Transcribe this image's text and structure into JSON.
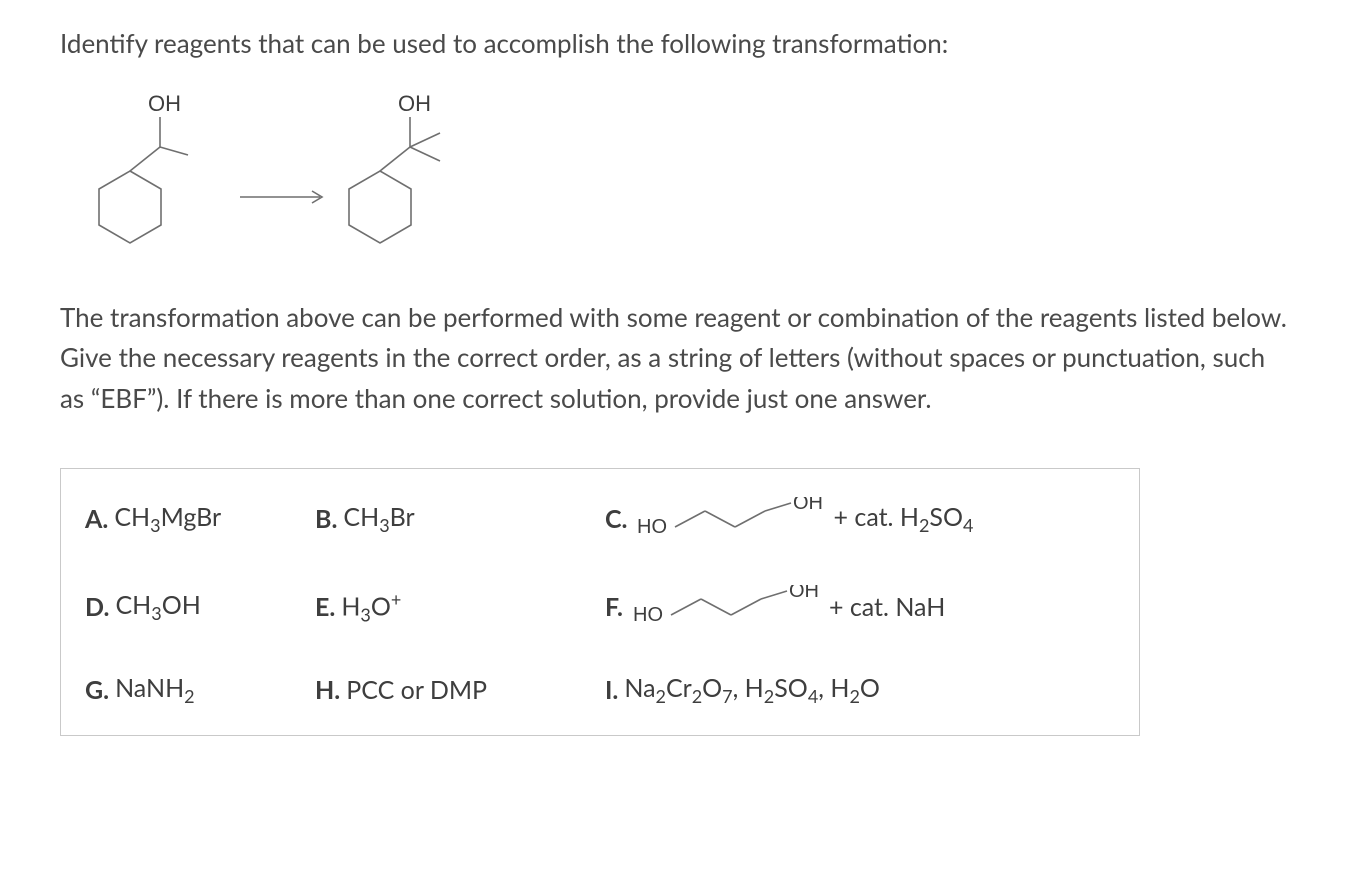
{
  "prompt": "Identify reagents that can be used to accomplish the following transformation:",
  "scheme": {
    "start_label": "OH",
    "product_label": "OH",
    "hex_stroke": "#6f6f6f",
    "hex_stroke_width": 1.6,
    "label_color": "#3e3e3e",
    "label_fontsize": 22
  },
  "explain": "The transformation above can be performed with some reagent or combination of the reagents listed below. Give the necessary reagents in the correct order, as a string of letters (without spaces or punctuation, such as “EBF”). If there is more than one correct solution, provide just one answer.",
  "reagents": {
    "A": {
      "label": "A.",
      "formula_html": "CH<span class='sub'>3</span>MgBr"
    },
    "B": {
      "label": "B.",
      "formula_html": "CH<span class='sub'>3</span>Br"
    },
    "C": {
      "label": "C.",
      "tail_html": " + cat. H<span class='sub'>2</span>SO<span class='sub'>4</span>",
      "diol_stroke": "#6f6f6f",
      "diol_label": "HO",
      "diol_label2": "OH"
    },
    "D": {
      "label": "D.",
      "formula_html": "CH<span class='sub'>3</span>OH"
    },
    "E": {
      "label": "E.",
      "formula_html": "H<span class='sub'>3</span>O<span class='sup'>+</span>"
    },
    "F": {
      "label": "F.",
      "tail_html": " + cat. NaH",
      "diol_stroke": "#6f6f6f",
      "diol_label": "HO",
      "diol_label2": "OH"
    },
    "G": {
      "label": "G.",
      "formula_html": "NaNH<span class='sub'>2</span>"
    },
    "H": {
      "label": "H.",
      "formula_html": "PCC or DMP"
    },
    "I": {
      "label": "I.",
      "formula_html": "Na<span class='sub'>2</span>Cr<span class='sub'>2</span>O<span class='sub'>7</span>, H<span class='sub'>2</span>SO<span class='sub'>4</span>, H<span class='sub'>2</span>O"
    }
  },
  "colors": {
    "text": "#4a4a4a",
    "box_border": "#c9c9c9",
    "background": "#ffffff"
  }
}
